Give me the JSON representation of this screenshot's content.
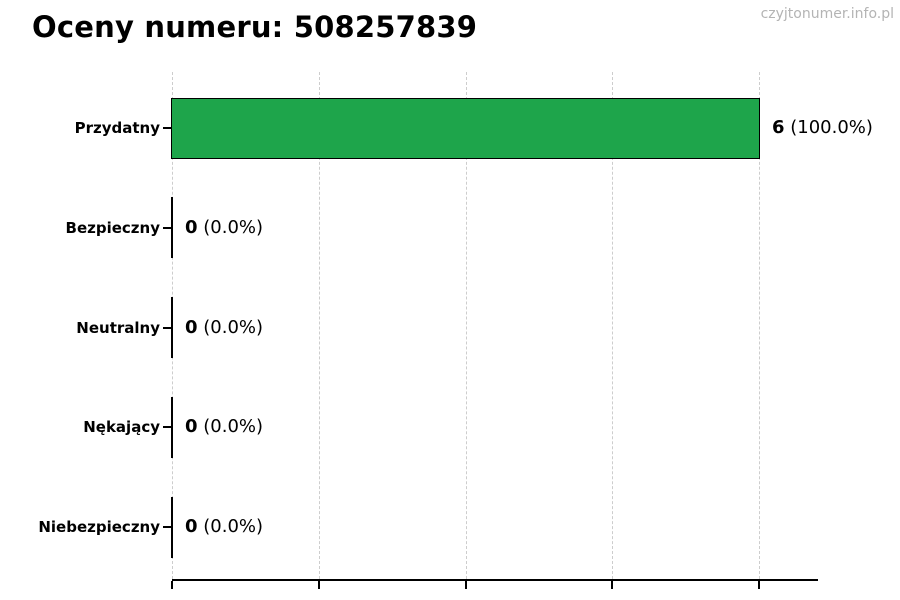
{
  "watermark": "czyjtonumer.info.pl",
  "chart_data": {
    "type": "bar",
    "orientation": "horizontal",
    "title": "Oceny numeru: 508257839",
    "categories": [
      "Przydatny",
      "Bezpieczny",
      "Neutralny",
      "Nękający",
      "Niebezpieczny"
    ],
    "values": [
      6,
      0,
      0,
      0,
      0
    ],
    "percentages": [
      100.0,
      0.0,
      0.0,
      0.0,
      0.0
    ],
    "value_labels": [
      {
        "count": "6",
        "pct": "(100.0%)"
      },
      {
        "count": "0",
        "pct": "(0.0%)"
      },
      {
        "count": "0",
        "pct": "(0.0%)"
      },
      {
        "count": "0",
        "pct": "(0.0%)"
      },
      {
        "count": "0",
        "pct": "(0.0%)"
      }
    ],
    "xlim": [
      0,
      6.6
    ],
    "x_ticks": [
      0,
      1.5,
      3.0,
      4.5,
      6.0
    ],
    "x_tick_labels_visible": false,
    "grid": "vertical-dashed",
    "legend": "none",
    "colors": {
      "bar_fill": "#1ea54b",
      "bar_edge": "#000000",
      "gridline": "#cdcdcd",
      "axis": "#000000",
      "watermark_text": "#b4b4b4"
    }
  }
}
